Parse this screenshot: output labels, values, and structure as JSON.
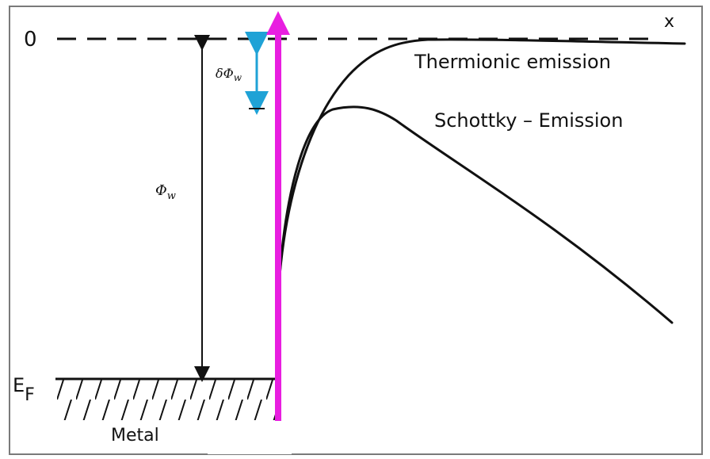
{
  "labels": {
    "zero_level": "0",
    "x_axis": "x",
    "fermi_level": "E",
    "fermi_subscript": "F",
    "metal": "Metal",
    "work_function": "Φ",
    "work_function_subscript": "w",
    "barrier_lowering": "δΦ",
    "barrier_lowering_subscript": "w",
    "thermionic": "Thermionic emission",
    "schottky": "Schottky – Emission"
  },
  "colors": {
    "ink": "#111111",
    "frame": "#7a7a7a",
    "accent_arrow": "#e81ee0",
    "barrier_arrow": "#1fa2d6",
    "background": "#ffffff"
  }
}
